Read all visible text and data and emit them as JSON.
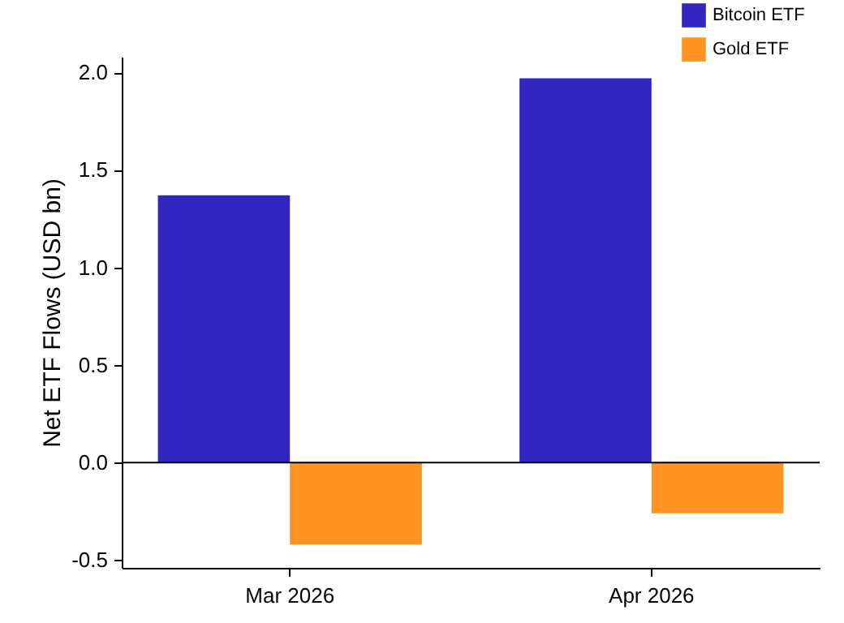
{
  "chart_data": {
    "type": "bar",
    "ylabel": "Net ETF Flows (USD bn)",
    "categories": [
      "Mar 2026",
      "Apr 2026"
    ],
    "series": [
      {
        "name": "Bitcoin ETF",
        "color": "#3326c0",
        "values": [
          1.37,
          1.97
        ]
      },
      {
        "name": "Gold ETF",
        "color": "#ff9422",
        "values": [
          -0.42,
          -0.26
        ]
      }
    ],
    "ylim": [
      -0.54,
      2.08
    ],
    "yticks": [
      {
        "value": -0.5,
        "label": "-0.5"
      },
      {
        "value": 0,
        "label": "0.0"
      },
      {
        "value": 0.5,
        "label": "0.5"
      },
      {
        "value": 1,
        "label": "1.0"
      },
      {
        "value": 1.5,
        "label": "1.5"
      },
      {
        "value": 2,
        "label": "2.0"
      }
    ],
    "ref_lines": [
      {
        "axis": "y",
        "value": 0,
        "color": "#000000"
      }
    ],
    "legend": "top right"
  }
}
